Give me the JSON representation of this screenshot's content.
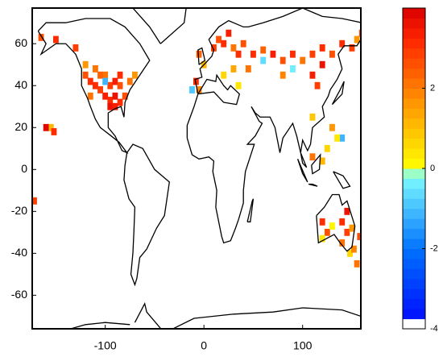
{
  "chart_data": {
    "type": "gridmap",
    "xlim": [
      -174,
      159
    ],
    "ylim": [
      -76,
      77
    ],
    "xticks": [
      -100,
      0,
      100
    ],
    "yticks": [
      -60,
      -40,
      -20,
      0,
      20,
      40,
      60
    ],
    "clim": [
      -4,
      4
    ],
    "cticks": [
      -4,
      -2,
      0,
      2
    ],
    "colormap": "jet-diverging",
    "x": [
      -120,
      -115,
      -110,
      -105,
      -100,
      -95,
      -90,
      -85,
      -80,
      -95,
      -90,
      -85,
      -100,
      -105,
      -110,
      -120,
      -130,
      -150,
      -165,
      -75,
      -70,
      -85,
      -95,
      -90,
      -100,
      -115,
      -155,
      -152,
      -172,
      15,
      20,
      25,
      10,
      30,
      35,
      40,
      50,
      60,
      70,
      80,
      90,
      100,
      110,
      120,
      130,
      140,
      150,
      155,
      60,
      90,
      110,
      115,
      45,
      30,
      20,
      -8,
      -5,
      -12,
      35,
      0,
      -5,
      80,
      120,
      160,
      110,
      130,
      140,
      135,
      125,
      110,
      120,
      -160,
      120,
      125,
      130,
      140,
      145,
      150,
      140,
      148,
      120,
      145,
      152,
      158,
      155
    ],
    "y": [
      45,
      42,
      40,
      38,
      35,
      33,
      35,
      32,
      35,
      40,
      42,
      40,
      45,
      45,
      48,
      50,
      58,
      62,
      63,
      42,
      45,
      45,
      30,
      30,
      42,
      35,
      20,
      18,
      -15,
      62,
      60,
      65,
      58,
      58,
      55,
      60,
      55,
      57,
      55,
      52,
      55,
      52,
      55,
      58,
      55,
      60,
      58,
      62,
      52,
      48,
      45,
      40,
      48,
      48,
      45,
      42,
      38,
      38,
      40,
      50,
      55,
      45,
      50,
      65,
      25,
      20,
      15,
      15,
      10,
      6,
      4,
      20,
      -25,
      -30,
      -27,
      -25,
      -30,
      -28,
      -35,
      -40,
      -33,
      -20,
      -38,
      -32,
      -45
    ],
    "values": [
      2.5,
      3,
      3.2,
      2.8,
      3.4,
      3,
      3.5,
      3.1,
      2.7,
      2.9,
      3.3,
      2.6,
      2.2,
      2.4,
      2,
      1.5,
      2.8,
      3,
      2.5,
      2,
      1.5,
      3.2,
      3.6,
      3.4,
      -1.2,
      2,
      1,
      3,
      2.8,
      2.5,
      3.2,
      3.4,
      2.8,
      2,
      3,
      2.7,
      3.1,
      2.4,
      3.3,
      2.6,
      3,
      2.2,
      2.8,
      3,
      2.5,
      3.2,
      2.8,
      1.6,
      -0.6,
      -0.4,
      3.4,
      2.9,
      2,
      1.4,
      0.6,
      3,
      1.8,
      -1,
      0.4,
      1.2,
      2.4,
      1.8,
      3.5,
      2.6,
      0.8,
      1.5,
      -1.2,
      0.3,
      0.5,
      2,
      1.2,
      3.8,
      3,
      2.5,
      0.2,
      3.2,
      2.8,
      1.5,
      2,
      0.5,
      0.3,
      3.5,
      1.8,
      2.5,
      2
    ]
  }
}
